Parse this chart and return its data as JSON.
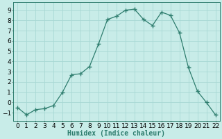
{
  "x": [
    0,
    1,
    2,
    3,
    4,
    5,
    6,
    7,
    8,
    9,
    10,
    11,
    12,
    13,
    14,
    15,
    16,
    17,
    18,
    19,
    20,
    21,
    22
  ],
  "y": [
    -0.5,
    -1.2,
    -0.7,
    -0.6,
    -0.3,
    1.0,
    2.7,
    2.8,
    3.5,
    5.7,
    8.1,
    8.4,
    9.0,
    9.1,
    8.1,
    7.5,
    8.8,
    8.5,
    6.8,
    3.4,
    1.1,
    0.0,
    -1.2
  ],
  "xlabel": "Humidex (Indice chaleur)",
  "line_color": "#2e7d6e",
  "marker": "+",
  "bg_color": "#c8ece8",
  "grid_color": "#a8d8d4",
  "ylim": [
    -1.8,
    9.8
  ],
  "xlim": [
    -0.5,
    22.5
  ],
  "yticks": [
    -1,
    0,
    1,
    2,
    3,
    4,
    5,
    6,
    7,
    8,
    9
  ],
  "xticks": [
    0,
    1,
    2,
    3,
    4,
    5,
    6,
    7,
    8,
    9,
    10,
    11,
    12,
    13,
    14,
    15,
    16,
    17,
    18,
    19,
    20,
    21,
    22
  ],
  "xlabel_fontsize": 7,
  "tick_fontsize": 6.5
}
